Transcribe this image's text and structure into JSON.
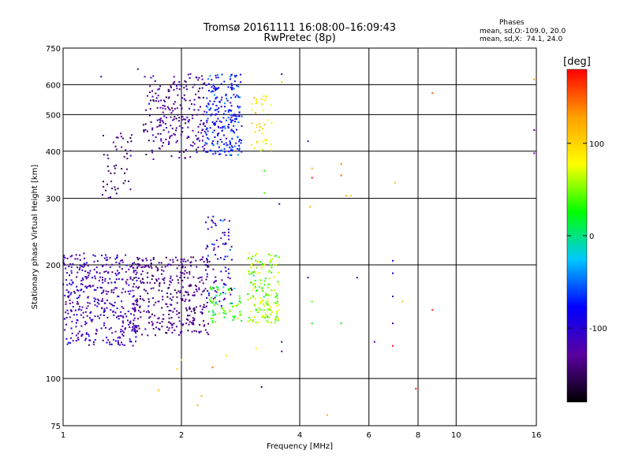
{
  "chart_data": {
    "type": "scatter",
    "title": "Tromsø 20161111 16:08:00–16:09:43",
    "subtitle": "RwPretec (8p)",
    "xlabel": "Frequency [MHz]",
    "ylabel": "Stationary phase Virtual Height [km]",
    "xscale": "log",
    "yscale": "log",
    "xlim": [
      1,
      16
    ],
    "ylim": [
      75,
      750
    ],
    "xticks": [
      1,
      2,
      4,
      6,
      8,
      10,
      16
    ],
    "xtick_labels": [
      "1",
      "2",
      "4",
      "6",
      "8",
      "10",
      "16"
    ],
    "yticks": [
      75,
      100,
      200,
      300,
      400,
      500,
      600,
      750
    ],
    "ytick_labels": [
      "75",
      "100",
      "200",
      "300",
      "400",
      "500",
      "600",
      "750"
    ],
    "grid": true,
    "phase_info": {
      "header": "Phases",
      "line_o": "mean, sd,O:-109.0, 20.0",
      "line_x": "mean, sd,X:  74.1, 24.0"
    },
    "colorbar": {
      "label": "[deg]",
      "range": [
        -180,
        180
      ],
      "ticks": [
        100,
        0,
        -100
      ],
      "tick_labels": [
        "100",
        "0",
        "-100"
      ],
      "stops": [
        "#000000",
        "#5a00a0",
        "#0000ff",
        "#00c8ff",
        "#00ff00",
        "#ffff00",
        "#ffa000",
        "#ff0000"
      ]
    },
    "series": [
      {
        "clusters": [
          {
            "x_range": [
              1.0,
              1.55
            ],
            "y_range": [
              122,
              215
            ],
            "phase_mean": -115,
            "phase_sd": 15,
            "count": 420
          },
          {
            "x_range": [
              1.5,
              2.35
            ],
            "y_range": [
              130,
              210
            ],
            "phase_mean": -135,
            "phase_sd": 12,
            "count": 360
          },
          {
            "x_range": [
              1.25,
              1.5
            ],
            "y_range": [
              300,
              460
            ],
            "phase_mean": -140,
            "phase_sd": 10,
            "count": 50
          },
          {
            "x_range": [
              1.6,
              2.3
            ],
            "y_range": [
              380,
              640
            ],
            "phase_mean": -130,
            "phase_sd": 15,
            "count": 230
          },
          {
            "x_range": [
              2.3,
              2.85
            ],
            "y_range": [
              390,
              640
            ],
            "phase_mean": -75,
            "phase_sd": 18,
            "count": 240
          },
          {
            "x_range": [
              2.3,
              2.7
            ],
            "y_range": [
              155,
              270
            ],
            "phase_mean": -110,
            "phase_sd": 25,
            "count": 90
          },
          {
            "x_range": [
              2.35,
              2.85
            ],
            "y_range": [
              140,
              175
            ],
            "phase_mean": 30,
            "phase_sd": 20,
            "count": 70
          },
          {
            "x_range": [
              2.95,
              3.55
            ],
            "y_range": [
              140,
              215
            ],
            "phase_mean": 55,
            "phase_sd": 20,
            "count": 170
          },
          {
            "x_range": [
              3.0,
              3.4
            ],
            "y_range": [
              400,
              560
            ],
            "phase_mean": 85,
            "phase_sd": 15,
            "count": 40
          }
        ],
        "points": [
          {
            "x": 1.55,
            "y": 660,
            "phase": -140
          },
          {
            "x": 1.25,
            "y": 630,
            "phase": -100
          },
          {
            "x": 3.6,
            "y": 640,
            "phase": -120
          },
          {
            "x": 3.6,
            "y": 610,
            "phase": 110
          },
          {
            "x": 8.7,
            "y": 570,
            "phase": 150
          },
          {
            "x": 15.8,
            "y": 620,
            "phase": 130
          },
          {
            "x": 15.8,
            "y": 455,
            "phase": -140
          },
          {
            "x": 15.8,
            "y": 395,
            "phase": -120
          },
          {
            "x": 4.2,
            "y": 425,
            "phase": -110
          },
          {
            "x": 4.3,
            "y": 360,
            "phase": 120
          },
          {
            "x": 4.3,
            "y": 340,
            "phase": 170
          },
          {
            "x": 5.1,
            "y": 370,
            "phase": 140
          },
          {
            "x": 5.1,
            "y": 345,
            "phase": 150
          },
          {
            "x": 5.25,
            "y": 305,
            "phase": 120
          },
          {
            "x": 5.4,
            "y": 305,
            "phase": 100
          },
          {
            "x": 7.0,
            "y": 330,
            "phase": 110
          },
          {
            "x": 3.25,
            "y": 355,
            "phase": 30
          },
          {
            "x": 3.25,
            "y": 310,
            "phase": 40
          },
          {
            "x": 3.55,
            "y": 290,
            "phase": -140
          },
          {
            "x": 4.25,
            "y": 285,
            "phase": 120
          },
          {
            "x": 6.9,
            "y": 205,
            "phase": -90
          },
          {
            "x": 6.9,
            "y": 190,
            "phase": -100
          },
          {
            "x": 6.9,
            "y": 165,
            "phase": -110
          },
          {
            "x": 6.9,
            "y": 140,
            "phase": -120
          },
          {
            "x": 6.2,
            "y": 125,
            "phase": -120
          },
          {
            "x": 6.9,
            "y": 122,
            "phase": 170
          },
          {
            "x": 5.6,
            "y": 185,
            "phase": -120
          },
          {
            "x": 5.1,
            "y": 140,
            "phase": 20
          },
          {
            "x": 4.2,
            "y": 185,
            "phase": -120
          },
          {
            "x": 4.3,
            "y": 160,
            "phase": 40
          },
          {
            "x": 4.3,
            "y": 140,
            "phase": 20
          },
          {
            "x": 3.6,
            "y": 125,
            "phase": -140
          },
          {
            "x": 3.6,
            "y": 118,
            "phase": -130
          },
          {
            "x": 7.3,
            "y": 160,
            "phase": 110
          },
          {
            "x": 8.7,
            "y": 152,
            "phase": 170
          },
          {
            "x": 7.9,
            "y": 94,
            "phase": 170
          },
          {
            "x": 3.2,
            "y": 95,
            "phase": -150
          },
          {
            "x": 4.7,
            "y": 80,
            "phase": 120
          },
          {
            "x": 2.4,
            "y": 107,
            "phase": 140
          },
          {
            "x": 2.2,
            "y": 85,
            "phase": 120
          },
          {
            "x": 2.25,
            "y": 90,
            "phase": 120
          },
          {
            "x": 1.75,
            "y": 93,
            "phase": 110
          },
          {
            "x": 1.95,
            "y": 106,
            "phase": 100
          },
          {
            "x": 2.6,
            "y": 115,
            "phase": 90
          },
          {
            "x": 3.1,
            "y": 120,
            "phase": 90
          },
          {
            "x": 2.0,
            "y": 112,
            "phase": 80
          }
        ]
      }
    ]
  }
}
